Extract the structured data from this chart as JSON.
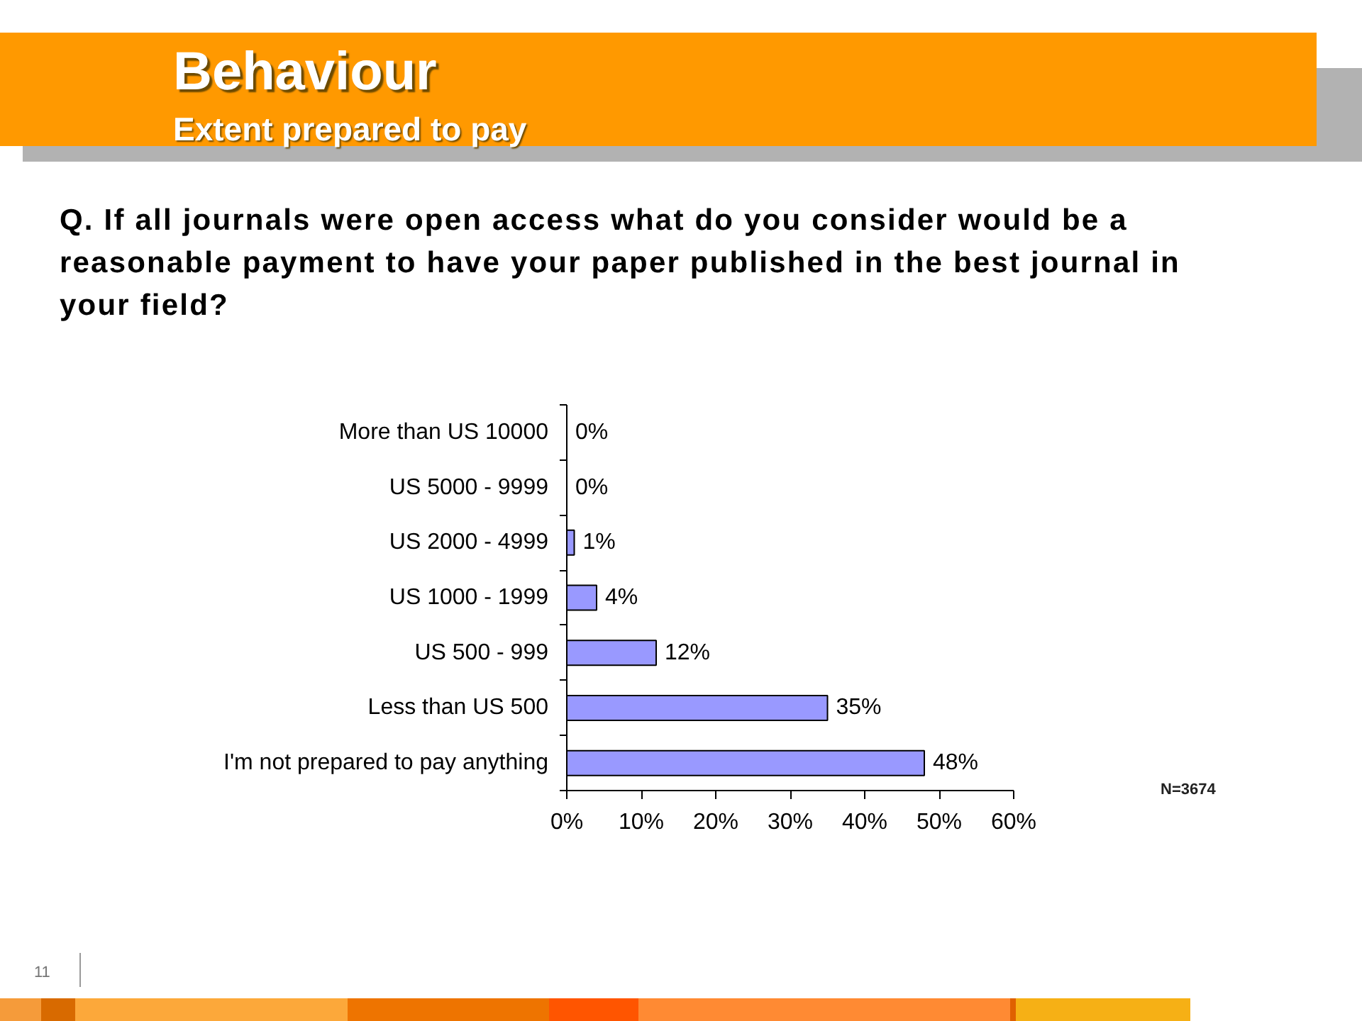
{
  "chart_data": {
    "type": "bar",
    "orientation": "horizontal",
    "title": "Behaviour",
    "subtitle": "Extent prepared to pay",
    "annotations": [
      "Q. If all journals were open access what do you consider would be a reasonable payment to have your paper published in the best journal in your field?",
      "N=3674",
      "11"
    ],
    "categories": [
      "More than US 10000",
      "US 5000 - 9999",
      "US 2000 - 4999",
      "US 1000 - 1999",
      "US 500 - 999",
      "Less than US 500",
      "I'm not prepared to pay anything"
    ],
    "values": [
      0,
      0,
      1,
      4,
      12,
      35,
      48
    ],
    "value_labels": [
      "0%",
      "0%",
      "1%",
      "4%",
      "12%",
      "35%",
      "48%"
    ],
    "color": "#9999ff",
    "xlim": [
      0,
      60
    ],
    "xticks": [
      {
        "value": 0,
        "label": "0%"
      },
      {
        "value": 10,
        "label": "10%"
      },
      {
        "value": 20,
        "label": "20%"
      },
      {
        "value": 30,
        "label": "30%"
      },
      {
        "value": 40,
        "label": "40%"
      },
      {
        "value": 50,
        "label": "50%"
      },
      {
        "value": 60,
        "label": "60%"
      }
    ],
    "grid": false
  }
}
